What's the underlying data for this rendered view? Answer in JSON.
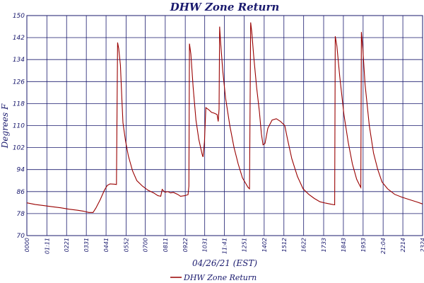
{
  "chart_data": {
    "type": "line",
    "title": "DHW Zone Return",
    "xlabel": "04/26/21 (EST)",
    "ylabel": "Degrees F",
    "ylim": [
      70,
      150
    ],
    "yticks": [
      70,
      78,
      86,
      94,
      102,
      110,
      118,
      126,
      134,
      142,
      150
    ],
    "xlim": [
      "00:00",
      "23:24"
    ],
    "xticks": [
      "00:00",
      "01:11",
      "02:21",
      "03:31",
      "04:41",
      "05:52",
      "07:00",
      "08:11",
      "09:22",
      "10:31",
      "11:41",
      "12:51",
      "14:02",
      "15:12",
      "16:22",
      "17:33",
      "18:43",
      "19:53",
      "21:04",
      "22:14",
      "23:24"
    ],
    "xtick_labels": [
      "0000",
      "01:11",
      "0221",
      "0331",
      "0441",
      "0552",
      "0700",
      "0811",
      "0922",
      "1031",
      "11:41",
      "1251",
      "1402",
      "1512",
      "1622",
      "1733",
      "1843",
      "1953",
      "21:04",
      "2214",
      "2324"
    ],
    "grid": true,
    "legend": "bottom-center",
    "colors": {
      "series": "#990000",
      "grid": "#1a1a6e",
      "text": "#1a1a6e"
    },
    "series": [
      {
        "name": "DHW Zone Return",
        "points": [
          [
            "00:00",
            81.9
          ],
          [
            "00:30",
            81.3
          ],
          [
            "01:00",
            80.9
          ],
          [
            "01:30",
            80.5
          ],
          [
            "02:00",
            80.1
          ],
          [
            "02:30",
            79.6
          ],
          [
            "03:00",
            79.2
          ],
          [
            "03:20",
            78.9
          ],
          [
            "03:40",
            78.4
          ],
          [
            "03:55",
            78.4
          ],
          [
            "04:05",
            80.0
          ],
          [
            "04:20",
            83.0
          ],
          [
            "04:35",
            86.5
          ],
          [
            "04:45",
            88.2
          ],
          [
            "04:55",
            88.8
          ],
          [
            "05:10",
            88.7
          ],
          [
            "05:18",
            88.6
          ],
          [
            "05:22",
            140.2
          ],
          [
            "05:26",
            138.0
          ],
          [
            "05:32",
            132.0
          ],
          [
            "05:37",
            120.0
          ],
          [
            "05:41",
            111.0
          ],
          [
            "05:50",
            104.5
          ],
          [
            "06:00",
            99.0
          ],
          [
            "06:15",
            93.5
          ],
          [
            "06:30",
            90.0
          ],
          [
            "06:50",
            88.0
          ],
          [
            "07:10",
            86.5
          ],
          [
            "07:30",
            85.5
          ],
          [
            "07:45",
            84.5
          ],
          [
            "07:55",
            84.3
          ],
          [
            "08:00",
            86.8
          ],
          [
            "08:10",
            85.8
          ],
          [
            "08:20",
            86.0
          ],
          [
            "08:30",
            85.5
          ],
          [
            "08:40",
            85.7
          ],
          [
            "08:55",
            85.0
          ],
          [
            "09:05",
            84.3
          ],
          [
            "09:20",
            84.5
          ],
          [
            "09:32",
            84.9
          ],
          [
            "09:35",
            88.0
          ],
          [
            "09:37",
            139.8
          ],
          [
            "09:42",
            136.0
          ],
          [
            "09:50",
            124.0
          ],
          [
            "10:00",
            112.0
          ],
          [
            "10:10",
            105.0
          ],
          [
            "10:22",
            99.5
          ],
          [
            "10:25",
            98.6
          ],
          [
            "10:30",
            104.0
          ],
          [
            "10:35",
            116.5
          ],
          [
            "10:45",
            115.8
          ],
          [
            "10:55",
            114.8
          ],
          [
            "11:05",
            114.5
          ],
          [
            "11:15",
            114.0
          ],
          [
            "11:19",
            111.5
          ],
          [
            "11:22",
            116.0
          ],
          [
            "11:24",
            146.0
          ],
          [
            "11:27",
            141.0
          ],
          [
            "11:35",
            130.0
          ],
          [
            "11:45",
            120.0
          ],
          [
            "12:00",
            110.0
          ],
          [
            "12:15",
            102.0
          ],
          [
            "12:30",
            96.0
          ],
          [
            "12:45",
            91.0
          ],
          [
            "13:05",
            87.5
          ],
          [
            "13:10",
            87.0
          ],
          [
            "13:14",
            147.5
          ],
          [
            "13:18",
            144.0
          ],
          [
            "13:25",
            135.0
          ],
          [
            "13:35",
            124.0
          ],
          [
            "13:45",
            115.0
          ],
          [
            "13:52",
            107.0
          ],
          [
            "13:58",
            103.0
          ],
          [
            "14:05",
            103.5
          ],
          [
            "14:15",
            109.0
          ],
          [
            "14:30",
            112.0
          ],
          [
            "14:45",
            112.5
          ],
          [
            "15:00",
            111.5
          ],
          [
            "15:15",
            110.0
          ],
          [
            "15:25",
            105.0
          ],
          [
            "15:40",
            98.0
          ],
          [
            "16:00",
            91.5
          ],
          [
            "16:20",
            87.0
          ],
          [
            "16:40",
            85.0
          ],
          [
            "17:00",
            83.5
          ],
          [
            "17:20",
            82.3
          ],
          [
            "17:40",
            81.8
          ],
          [
            "18:00",
            81.4
          ],
          [
            "18:12",
            81.2
          ],
          [
            "18:14",
            142.5
          ],
          [
            "18:20",
            139.0
          ],
          [
            "18:30",
            128.0
          ],
          [
            "18:45",
            114.0
          ],
          [
            "19:00",
            104.0
          ],
          [
            "19:15",
            96.0
          ],
          [
            "19:30",
            90.5
          ],
          [
            "19:42",
            88.0
          ],
          [
            "19:45",
            87.5
          ],
          [
            "19:47",
            144.0
          ],
          [
            "19:52",
            138.0
          ],
          [
            "20:00",
            125.0
          ],
          [
            "20:15",
            110.0
          ],
          [
            "20:30",
            100.0
          ],
          [
            "20:45",
            94.0
          ],
          [
            "21:00",
            89.5
          ],
          [
            "21:20",
            87.0
          ],
          [
            "21:45",
            85.0
          ],
          [
            "22:10",
            84.0
          ],
          [
            "22:40",
            83.0
          ],
          [
            "23:05",
            82.2
          ],
          [
            "23:24",
            81.5
          ]
        ]
      }
    ]
  }
}
